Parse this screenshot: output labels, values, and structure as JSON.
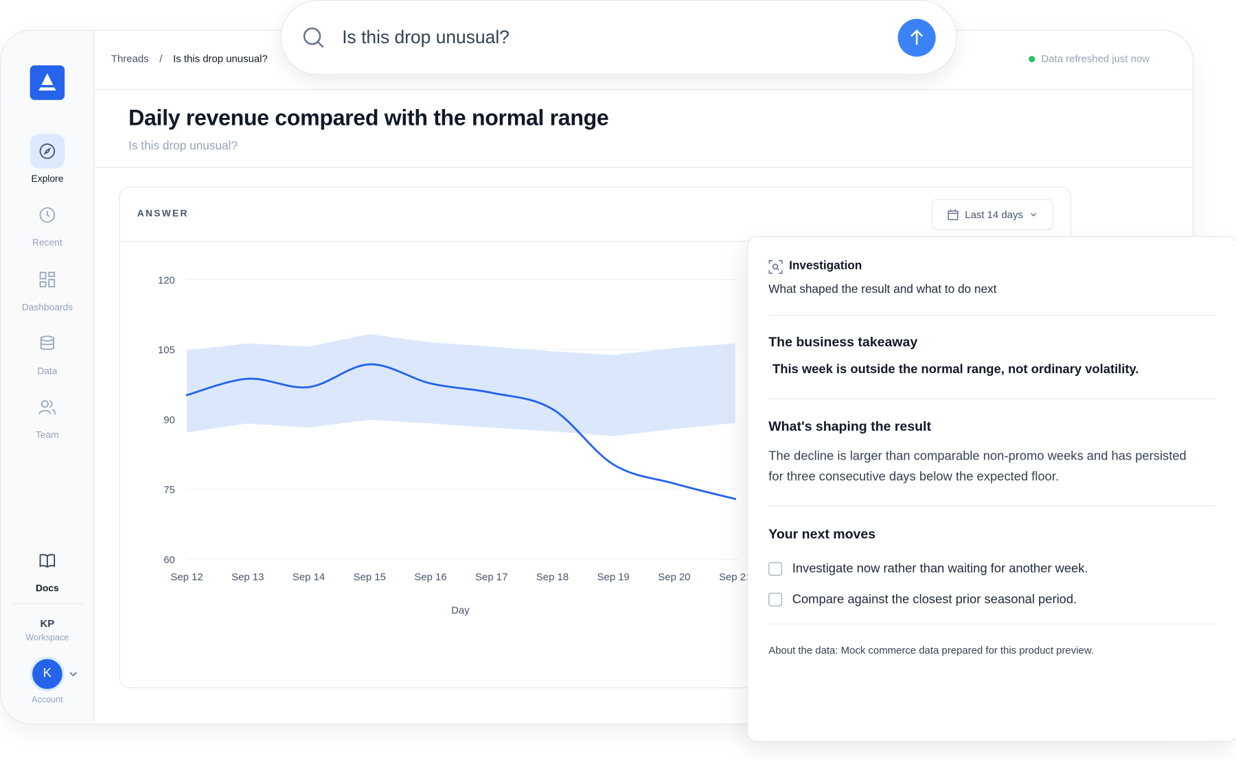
{
  "search": {
    "query": "Is this drop unusual?"
  },
  "breadcrumb": {
    "items": [
      "Threads",
      "Is this drop unusual?"
    ],
    "separator": "/"
  },
  "status": "Data refreshed just now",
  "sidebar": {
    "nav": [
      "Explore",
      "Recent",
      "Dashboards",
      "Data",
      "Team"
    ],
    "docs": "Docs",
    "workspace": {
      "initials": "KP",
      "label": "Workspace"
    },
    "account": {
      "avatar": "K",
      "label": "Account"
    }
  },
  "header": {
    "title": "Daily revenue compared with the normal range",
    "subtitle": "Is this drop unusual?"
  },
  "answer": {
    "label": "ANSWER",
    "range": "Last 14 days"
  },
  "chart_data": {
    "type": "line",
    "x_label": "Day",
    "categories": [
      "Sep 12",
      "Sep 13",
      "Sep 14",
      "Sep 15",
      "Sep 16",
      "Sep 17",
      "Sep 18",
      "Sep 19",
      "Sep 20",
      "Sep 21"
    ],
    "series": [
      {
        "color": "#2563eb",
        "values": [
          95.2,
          98.7,
          96.9,
          101.8,
          97.7,
          95.7,
          92.2,
          80.3,
          76.2,
          72.9
        ]
      }
    ],
    "band": {
      "color": "#dbe8fc",
      "upper": [
        104.8,
        106.3,
        105.6,
        108.3,
        106.5,
        105.6,
        104.6,
        103.8,
        105.3,
        106.3
      ],
      "lower": [
        87.2,
        89.1,
        88.2,
        89.9,
        89.1,
        88.2,
        87.4,
        86.4,
        87.9,
        89.2
      ]
    },
    "ylim": [
      60,
      120
    ],
    "yticks": [
      60,
      75,
      90,
      105,
      120
    ],
    "grid": true
  },
  "investigation": {
    "title": "Investigation",
    "subtitle": "What shaped the result and what to do next",
    "takeaway": {
      "heading": "The business takeaway",
      "text": "This week is outside the normal range, not ordinary volatility."
    },
    "shaping": {
      "heading": "What's shaping the result",
      "text": "The decline is larger than comparable non-promo weeks and has persisted for three consecutive days below the expected floor."
    },
    "moves": {
      "heading": "Your next moves",
      "items": [
        "Investigate now rather than waiting for another week.",
        "Compare against the closest prior seasonal period."
      ]
    },
    "about": "About the data: Mock commerce data prepared for this product preview."
  }
}
